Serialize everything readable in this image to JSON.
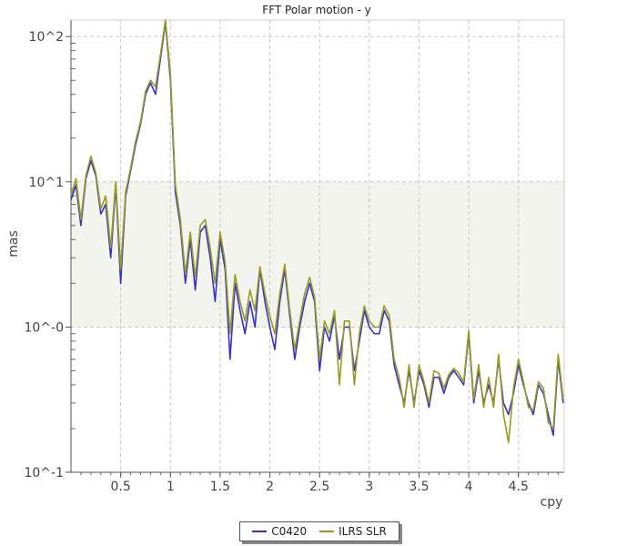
{
  "chart_data": {
    "type": "line",
    "title": "FFT Polar motion - y",
    "xlabel": "cpy",
    "ylabel": "mas",
    "y_scale": "log",
    "ylim": [
      0.1,
      130
    ],
    "xlim": [
      0.0,
      4.96
    ],
    "x_ticks": [
      0.5,
      1,
      1.5,
      2,
      2.5,
      3,
      3.5,
      4,
      4.5
    ],
    "x_tick_labels": [
      "0.5",
      "1",
      "1.5",
      "2",
      "2.5",
      "3",
      "3.5",
      "4",
      "4.5"
    ],
    "y_ticks": [
      0.1,
      1,
      10,
      100
    ],
    "y_tick_labels": [
      "10^-1",
      "10^-0",
      "10^1",
      "10^2"
    ],
    "band": {
      "from": 1,
      "to": 10,
      "color": "#f4f4ef"
    },
    "grid": true,
    "legend_position": "bottom-center",
    "x": [
      0.0,
      0.05,
      0.1,
      0.15,
      0.2,
      0.25,
      0.3,
      0.35,
      0.4,
      0.45,
      0.5,
      0.55,
      0.6,
      0.65,
      0.7,
      0.75,
      0.8,
      0.85,
      0.9,
      0.95,
      1.0,
      1.05,
      1.1,
      1.15,
      1.2,
      1.25,
      1.3,
      1.35,
      1.4,
      1.45,
      1.5,
      1.55,
      1.6,
      1.65,
      1.7,
      1.75,
      1.8,
      1.85,
      1.9,
      1.95,
      2.0,
      2.05,
      2.1,
      2.15,
      2.2,
      2.25,
      2.3,
      2.35,
      2.4,
      2.45,
      2.5,
      2.55,
      2.6,
      2.65,
      2.7,
      2.75,
      2.8,
      2.85,
      2.9,
      2.95,
      3.0,
      3.05,
      3.1,
      3.15,
      3.2,
      3.25,
      3.3,
      3.35,
      3.4,
      3.45,
      3.5,
      3.55,
      3.6,
      3.65,
      3.7,
      3.75,
      3.8,
      3.85,
      3.9,
      3.95,
      4.0,
      4.05,
      4.1,
      4.15,
      4.2,
      4.25,
      4.3,
      4.35,
      4.4,
      4.45,
      4.5,
      4.55,
      4.6,
      4.65,
      4.7,
      4.75,
      4.8,
      4.85,
      4.9,
      4.95
    ],
    "series": [
      {
        "name": "C0420",
        "color": "#3333cc",
        "values": [
          7.5,
          9.5,
          5.0,
          10.5,
          14.0,
          11.0,
          6.0,
          7.0,
          3.0,
          9.5,
          2.0,
          8.0,
          12.0,
          18.0,
          25.0,
          40.0,
          48.0,
          40.0,
          70.0,
          125.0,
          50.0,
          8.5,
          5.0,
          2.0,
          4.0,
          1.8,
          4.5,
          5.0,
          3.0,
          1.5,
          4.0,
          2.5,
          0.6,
          2.0,
          1.3,
          0.9,
          1.5,
          1.0,
          2.5,
          1.5,
          1.0,
          0.7,
          1.5,
          2.5,
          1.2,
          0.6,
          1.0,
          1.5,
          2.0,
          1.5,
          0.5,
          1.0,
          0.8,
          1.2,
          0.6,
          1.0,
          1.0,
          0.5,
          0.8,
          1.3,
          1.0,
          0.9,
          0.9,
          1.3,
          1.1,
          0.55,
          0.4,
          0.3,
          0.5,
          0.3,
          0.5,
          0.4,
          0.28,
          0.45,
          0.45,
          0.35,
          0.45,
          0.5,
          0.45,
          0.4,
          0.9,
          0.3,
          0.5,
          0.3,
          0.4,
          0.3,
          0.6,
          0.3,
          0.25,
          0.35,
          0.55,
          0.4,
          0.3,
          0.25,
          0.4,
          0.35,
          0.25,
          0.18,
          0.6,
          0.3
        ]
      },
      {
        "name": "ILRS SLR",
        "color": "#9a9a20",
        "values": [
          8.0,
          10.5,
          5.5,
          11.0,
          15.0,
          11.5,
          6.5,
          8.0,
          3.5,
          10.0,
          2.5,
          8.5,
          12.5,
          19.0,
          26.0,
          42.0,
          50.0,
          45.0,
          75.0,
          130.0,
          55.0,
          9.5,
          5.5,
          2.3,
          4.5,
          2.2,
          5.0,
          5.5,
          3.5,
          2.0,
          4.5,
          2.8,
          0.9,
          2.3,
          1.5,
          1.1,
          1.8,
          1.3,
          2.6,
          1.7,
          1.2,
          0.9,
          1.7,
          2.7,
          1.3,
          0.7,
          1.1,
          1.7,
          2.2,
          1.6,
          0.6,
          1.1,
          0.9,
          1.3,
          0.4,
          1.1,
          1.1,
          0.4,
          0.9,
          1.4,
          1.1,
          1.0,
          1.0,
          1.4,
          1.2,
          0.6,
          0.45,
          0.28,
          0.55,
          0.28,
          0.55,
          0.42,
          0.3,
          0.5,
          0.48,
          0.38,
          0.47,
          0.52,
          0.48,
          0.42,
          0.95,
          0.32,
          0.55,
          0.28,
          0.45,
          0.28,
          0.65,
          0.25,
          0.16,
          0.38,
          0.6,
          0.42,
          0.28,
          0.27,
          0.42,
          0.38,
          0.22,
          0.2,
          0.65,
          0.32
        ]
      }
    ]
  }
}
